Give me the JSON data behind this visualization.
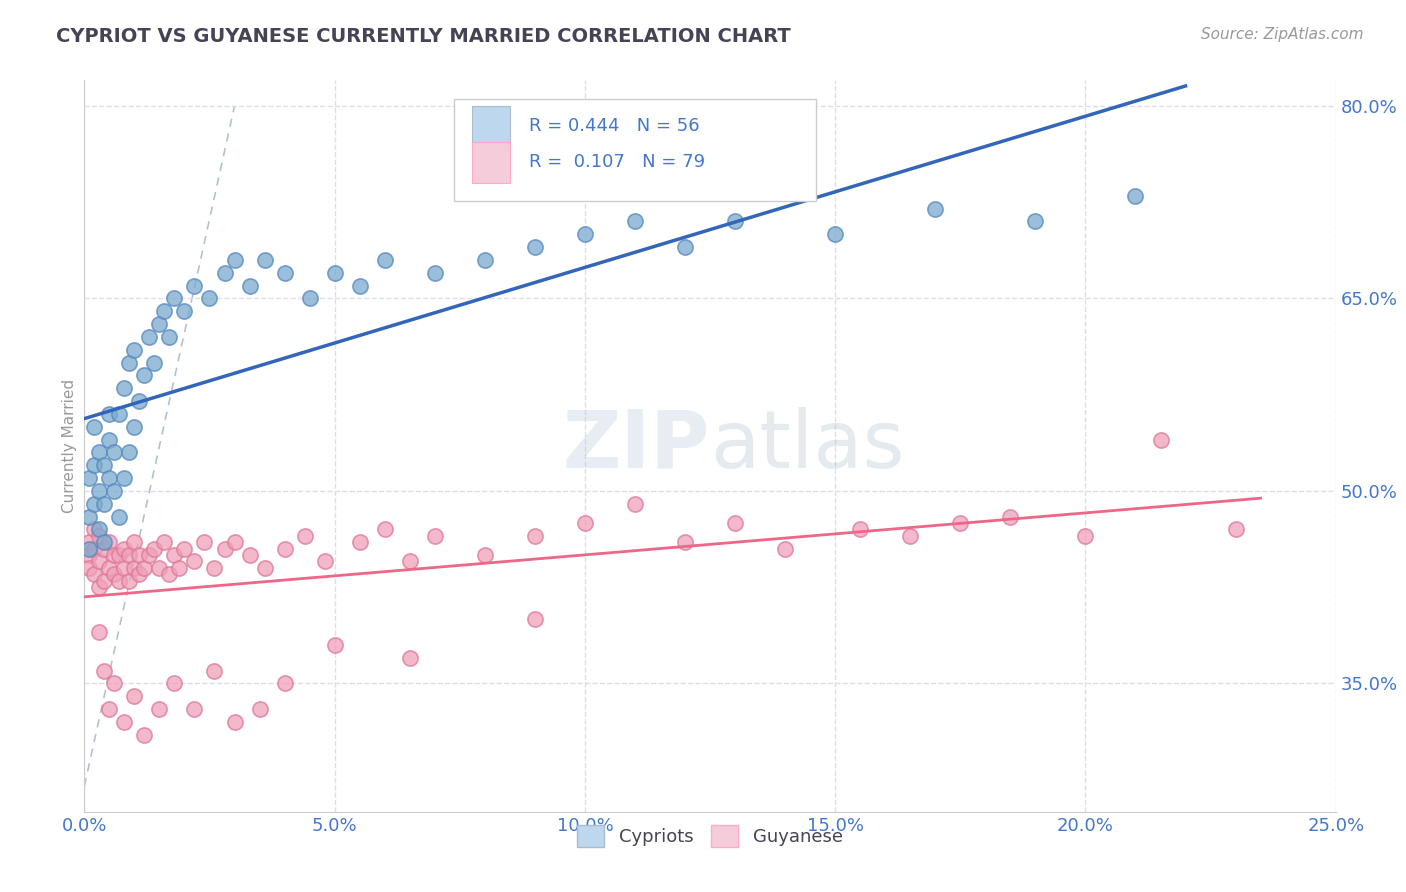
{
  "title": "CYPRIOT VS GUYANESE CURRENTLY MARRIED CORRELATION CHART",
  "source": "Source: ZipAtlas.com",
  "ylabel": "Currently Married",
  "xlim": [
    0.0,
    0.25
  ],
  "ylim": [
    0.25,
    0.82
  ],
  "xticks": [
    0.0,
    0.05,
    0.1,
    0.15,
    0.2,
    0.25
  ],
  "yticks": [
    0.35,
    0.5,
    0.65,
    0.8
  ],
  "ytick_labels": [
    "35.0%",
    "50.0%",
    "65.0%",
    "80.0%"
  ],
  "xtick_labels": [
    "0.0%",
    "5.0%",
    "10.0%",
    "15.0%",
    "20.0%",
    "25.0%"
  ],
  "legend_R1": "0.444",
  "legend_N1": "56",
  "legend_R2": "0.107",
  "legend_N2": "79",
  "blue_dot_color": "#7AAAD0",
  "blue_dot_edge": "#5588BB",
  "pink_dot_color": "#F0A0B8",
  "pink_dot_edge": "#DD7799",
  "blue_fill_legend": "#BDD7EE",
  "pink_fill_legend": "#F4CCDA",
  "trend_blue": "#3366BB",
  "trend_pink": "#EE6688",
  "title_color": "#444455",
  "axis_color": "#4477CC",
  "ref_line_color": "#AABBCC",
  "grid_color": "#DDDDEE",
  "background_color": "#FFFFFF",
  "watermark_color": "#D0DFF0",
  "cypriot_x": [
    0.001,
    0.001,
    0.001,
    0.002,
    0.002,
    0.002,
    0.003,
    0.003,
    0.003,
    0.004,
    0.004,
    0.004,
    0.005,
    0.005,
    0.005,
    0.006,
    0.006,
    0.007,
    0.007,
    0.008,
    0.008,
    0.009,
    0.009,
    0.01,
    0.01,
    0.011,
    0.012,
    0.013,
    0.014,
    0.015,
    0.016,
    0.017,
    0.018,
    0.02,
    0.022,
    0.025,
    0.028,
    0.03,
    0.033,
    0.036,
    0.04,
    0.045,
    0.05,
    0.055,
    0.06,
    0.07,
    0.08,
    0.09,
    0.1,
    0.11,
    0.12,
    0.13,
    0.15,
    0.17,
    0.19,
    0.21
  ],
  "cypriot_y": [
    0.455,
    0.48,
    0.51,
    0.49,
    0.52,
    0.55,
    0.47,
    0.5,
    0.53,
    0.46,
    0.49,
    0.52,
    0.51,
    0.54,
    0.56,
    0.5,
    0.53,
    0.48,
    0.56,
    0.51,
    0.58,
    0.53,
    0.6,
    0.55,
    0.61,
    0.57,
    0.59,
    0.62,
    0.6,
    0.63,
    0.64,
    0.62,
    0.65,
    0.64,
    0.66,
    0.65,
    0.67,
    0.68,
    0.66,
    0.68,
    0.67,
    0.65,
    0.67,
    0.66,
    0.68,
    0.67,
    0.68,
    0.69,
    0.7,
    0.71,
    0.69,
    0.71,
    0.7,
    0.72,
    0.71,
    0.73
  ],
  "guyanese_x": [
    0.001,
    0.001,
    0.001,
    0.002,
    0.002,
    0.002,
    0.003,
    0.003,
    0.003,
    0.004,
    0.004,
    0.005,
    0.005,
    0.006,
    0.006,
    0.007,
    0.007,
    0.008,
    0.008,
    0.009,
    0.009,
    0.01,
    0.01,
    0.011,
    0.011,
    0.012,
    0.013,
    0.014,
    0.015,
    0.016,
    0.017,
    0.018,
    0.019,
    0.02,
    0.022,
    0.024,
    0.026,
    0.028,
    0.03,
    0.033,
    0.036,
    0.04,
    0.044,
    0.048,
    0.055,
    0.06,
    0.065,
    0.07,
    0.08,
    0.09,
    0.1,
    0.11,
    0.12,
    0.13,
    0.14,
    0.155,
    0.165,
    0.175,
    0.185,
    0.2,
    0.215,
    0.23,
    0.003,
    0.004,
    0.005,
    0.006,
    0.008,
    0.01,
    0.012,
    0.015,
    0.018,
    0.022,
    0.026,
    0.03,
    0.035,
    0.04,
    0.05,
    0.065,
    0.09
  ],
  "guyanese_y": [
    0.45,
    0.44,
    0.46,
    0.435,
    0.455,
    0.47,
    0.425,
    0.445,
    0.465,
    0.43,
    0.455,
    0.44,
    0.46,
    0.435,
    0.45,
    0.43,
    0.45,
    0.44,
    0.455,
    0.43,
    0.45,
    0.44,
    0.46,
    0.435,
    0.45,
    0.44,
    0.45,
    0.455,
    0.44,
    0.46,
    0.435,
    0.45,
    0.44,
    0.455,
    0.445,
    0.46,
    0.44,
    0.455,
    0.46,
    0.45,
    0.44,
    0.455,
    0.465,
    0.445,
    0.46,
    0.47,
    0.445,
    0.465,
    0.45,
    0.465,
    0.475,
    0.49,
    0.46,
    0.475,
    0.455,
    0.47,
    0.465,
    0.475,
    0.48,
    0.465,
    0.54,
    0.47,
    0.39,
    0.36,
    0.33,
    0.35,
    0.32,
    0.34,
    0.31,
    0.33,
    0.35,
    0.33,
    0.36,
    0.32,
    0.33,
    0.35,
    0.38,
    0.37,
    0.4
  ]
}
